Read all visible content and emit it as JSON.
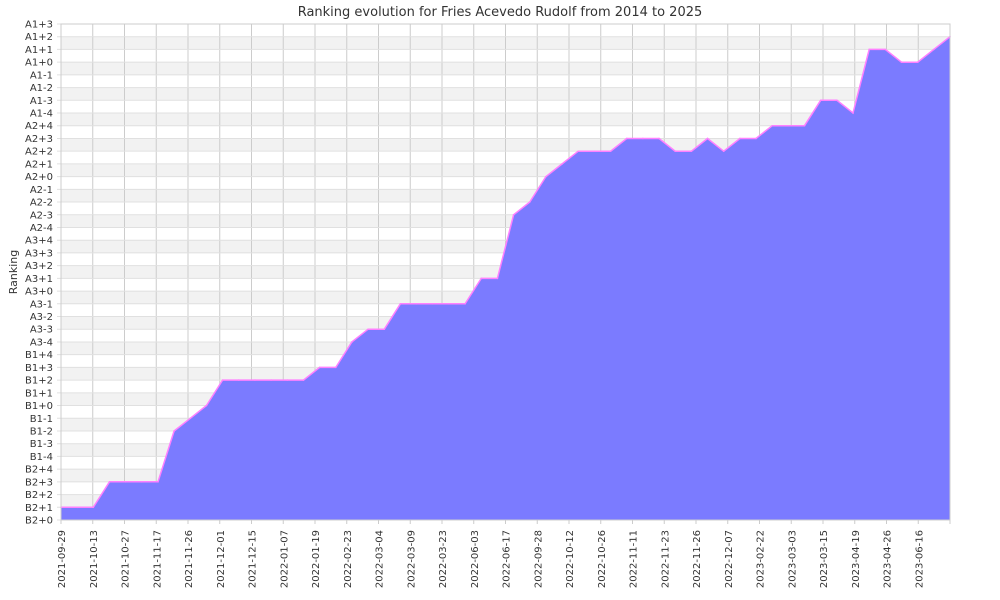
{
  "chart_data": {
    "type": "area",
    "title": "Ranking evolution for Fries Acevedo Rudolf from 2014 to 2025",
    "xlabel": "",
    "ylabel": "Ranking",
    "y_tick_labels": [
      "B2+0",
      "B2+1",
      "B2+2",
      "B2+3",
      "B2+4",
      "B1-4",
      "B1-3",
      "B1-2",
      "B1-1",
      "B1+0",
      "B1+1",
      "B1+2",
      "B1+3",
      "B1+4",
      "A3-4",
      "A3-3",
      "A3-2",
      "A3-1",
      "A3+0",
      "A3+1",
      "A3+2",
      "A3+3",
      "A3+4",
      "A2-4",
      "A2-3",
      "A2-2",
      "A2-1",
      "A2+0",
      "A2+1",
      "A2+2",
      "A2+3",
      "A2+4",
      "A1-4",
      "A1-3",
      "A1-2",
      "A1-1",
      "A1+0",
      "A1+1",
      "A1+2",
      "A1+3"
    ],
    "x_tick_labels": [
      "2021-09-29",
      "2021-10-13",
      "2021-10-27",
      "2021-11-17",
      "2021-11-26",
      "2021-12-01",
      "2021-12-15",
      "2022-01-07",
      "2022-01-19",
      "2022-02-23",
      "2022-03-04",
      "2022-03-09",
      "2022-03-23",
      "2022-06-03",
      "2022-06-17",
      "2022-09-28",
      "2022-10-12",
      "2022-10-26",
      "2022-11-11",
      "2022-11-23",
      "2022-11-26",
      "2022-12-07",
      "2023-02-22",
      "2023-03-03",
      "2023-03-15",
      "2023-04-19",
      "2023-04-26",
      "2023-06-16"
    ],
    "series": [
      {
        "values": [
          1,
          1,
          1,
          3,
          3,
          3,
          3,
          7,
          8,
          9,
          11,
          11,
          11,
          11,
          11,
          11,
          12,
          12,
          14,
          15,
          15,
          17,
          17,
          17,
          17,
          17,
          19,
          19,
          24,
          25,
          27,
          28,
          29,
          29,
          29,
          30,
          30,
          30,
          29,
          29,
          30,
          29,
          30,
          30,
          31,
          31,
          31,
          33,
          33,
          32,
          37,
          37,
          36,
          36,
          37,
          38
        ]
      }
    ],
    "colors": {
      "fill": "#7b7bff",
      "line": "#ff80ff",
      "grid_band": "#f2f2f2",
      "grid_line": "#cccccc"
    },
    "grid": true,
    "legend": "none"
  }
}
